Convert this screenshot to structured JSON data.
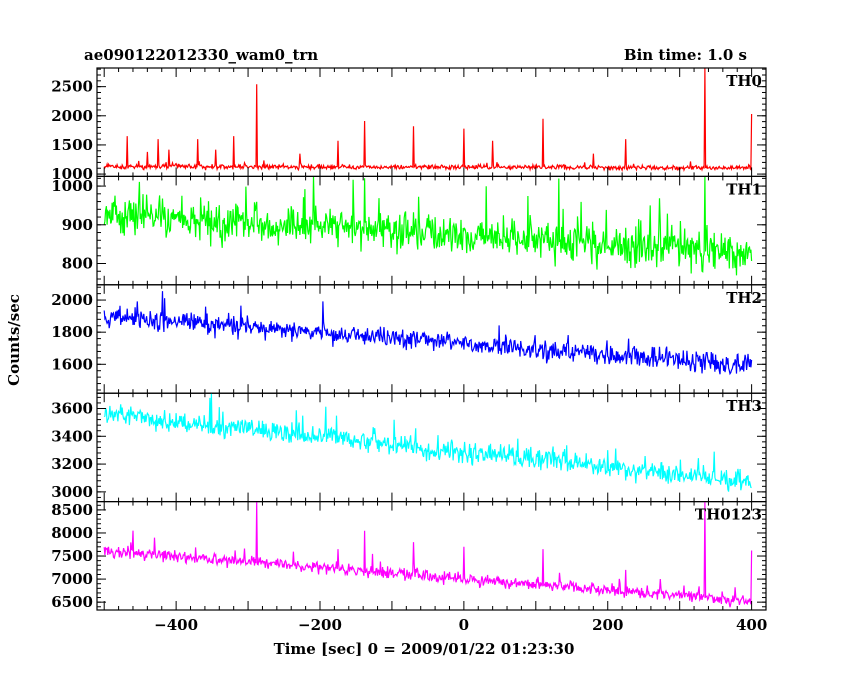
{
  "chart_data": {
    "type": "line",
    "title": "ae090122012330_wam0_trn",
    "bin_time": "Bin time: 1.0 s",
    "xlabel": "Time [sec] 0 = 2009/01/22 01:23:30",
    "ylabel": "Counts/sec",
    "xlim": [
      -510,
      420
    ],
    "x_ticks": [
      -400,
      -200,
      0,
      200,
      400
    ],
    "x_tick_labels": [
      "−400",
      "−200",
      "0",
      "200",
      "400"
    ],
    "x_start": -500,
    "x_end": 400,
    "x_step": 1,
    "panels": [
      {
        "name": "TH0",
        "color": "#ff0000",
        "ylim": [
          960,
          2820
        ],
        "yticks": [
          1000,
          1500,
          2000,
          2500
        ],
        "trend": [
          [
            -500,
            1130
          ],
          [
            400,
            1110
          ]
        ],
        "noise": 30,
        "spikes": [
          [
            -468,
            1650
          ],
          [
            -440,
            1380
          ],
          [
            -425,
            1600
          ],
          [
            -410,
            1420
          ],
          [
            -370,
            1600
          ],
          [
            -345,
            1420
          ],
          [
            -320,
            1650
          ],
          [
            -288,
            2540
          ],
          [
            -228,
            1350
          ],
          [
            -175,
            1570
          ],
          [
            -138,
            1910
          ],
          [
            -70,
            1820
          ],
          [
            0,
            1780
          ],
          [
            40,
            1570
          ],
          [
            110,
            1950
          ],
          [
            180,
            1350
          ],
          [
            225,
            1600
          ],
          [
            335,
            2820
          ],
          [
            400,
            2030
          ]
        ]
      },
      {
        "name": "TH1",
        "color": "#00ff00",
        "ylim": [
          745,
          1025
        ],
        "yticks": [
          800,
          900,
          1000
        ],
        "trend": [
          [
            -500,
            925
          ],
          [
            400,
            830
          ]
        ],
        "noise": 35,
        "spikes": [
          [
            -138,
            1020
          ],
          [
            335,
            1025
          ]
        ]
      },
      {
        "name": "TH2",
        "color": "#0000ff",
        "ylim": [
          1420,
          2095
        ],
        "yticks": [
          1600,
          1800,
          2000
        ],
        "trend": [
          [
            -500,
            1900
          ],
          [
            400,
            1590
          ]
        ],
        "noise": 45,
        "spikes": []
      },
      {
        "name": "TH3",
        "color": "#00ffff",
        "ylim": [
          2930,
          3710
        ],
        "yticks": [
          3000,
          3200,
          3400,
          3600
        ],
        "trend": [
          [
            -500,
            3560
          ],
          [
            400,
            3070
          ]
        ],
        "noise": 55,
        "spikes": [
          [
            -340,
            3610
          ],
          [
            200,
            3300
          ]
        ]
      },
      {
        "name": "TH0123",
        "color": "#ff00ff",
        "ylim": [
          6330,
          8680
        ],
        "yticks": [
          6500,
          7000,
          7500,
          8000,
          8500
        ],
        "trend": [
          [
            -500,
            7620
          ],
          [
            400,
            6520
          ]
        ],
        "noise": 90,
        "spikes": [
          [
            -460,
            8050
          ],
          [
            -430,
            7900
          ],
          [
            -288,
            8680
          ],
          [
            -175,
            7650
          ],
          [
            -138,
            8050
          ],
          [
            -70,
            7800
          ],
          [
            0,
            7700
          ],
          [
            110,
            7650
          ],
          [
            225,
            7200
          ],
          [
            335,
            8680
          ],
          [
            400,
            7620
          ]
        ]
      }
    ]
  }
}
